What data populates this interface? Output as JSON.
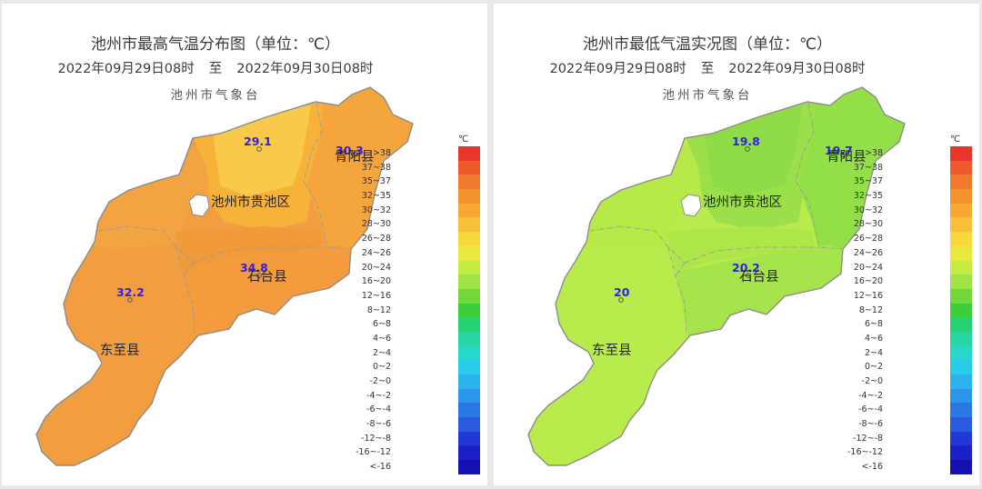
{
  "panels": [
    {
      "title": "池州市最高气温分布图（单位：℃）",
      "date_from": "2022年09月29日08时",
      "date_sep": "至",
      "date_to": "2022年09月30日08时",
      "source": "池州市气象台",
      "region_colors": {
        "north": "#f7b23a",
        "north_center": "#f9c94a",
        "northeast": "#f4a63c",
        "west": "#f4a343",
        "center": "#f19a3a",
        "southeast": "#f39b3d",
        "southwest": "#f29e40"
      },
      "stations": [
        {
          "value": "29.1"
        },
        {
          "value": "30.3"
        },
        {
          "value": "34.8"
        },
        {
          "value": "32.2"
        }
      ],
      "counties": {
        "guichi": "池州市贵池区",
        "qingyang": "青阳县",
        "shitai": "石台县",
        "dongzhi": "东至县"
      }
    },
    {
      "title": "池州市最低气温实况图（单位：℃）",
      "date_from": "2022年09月29日08时",
      "date_sep": "至",
      "date_to": "2022年09月30日08时",
      "source": "池州市气象台",
      "region_colors": {
        "north": "#9be04a",
        "north_center": "#8fdc48",
        "northeast": "#93df48",
        "west": "#b6ea49",
        "center": "#aee64a",
        "southeast": "#a5e44a",
        "southwest": "#b8ec4c"
      },
      "stations": [
        {
          "value": "19.8"
        },
        {
          "value": "19.7"
        },
        {
          "value": "20.2"
        },
        {
          "value": "20"
        }
      ],
      "counties": {
        "guichi": "池州市贵池区",
        "qingyang": "青阳县",
        "shitai": "石台县",
        "dongzhi": "东至县"
      }
    }
  ],
  "legend": {
    "unit": "℃",
    "items": [
      {
        "label": ">38",
        "color": "#e8372a"
      },
      {
        "label": "37~38",
        "color": "#ef5a2a"
      },
      {
        "label": "35~37",
        "color": "#f27a2c"
      },
      {
        "label": "32~35",
        "color": "#f5932e"
      },
      {
        "label": "30~32",
        "color": "#f6a832"
      },
      {
        "label": "28~30",
        "color": "#f7c038"
      },
      {
        "label": "26~28",
        "color": "#f5d83a"
      },
      {
        "label": "24~26",
        "color": "#e7ea3c"
      },
      {
        "label": "20~24",
        "color": "#c5ec42"
      },
      {
        "label": "16~20",
        "color": "#9fe346"
      },
      {
        "label": "12~16",
        "color": "#72d83c"
      },
      {
        "label": "8~12",
        "color": "#3ccf3a"
      },
      {
        "label": "6~8",
        "color": "#28d274"
      },
      {
        "label": "4~6",
        "color": "#27d6a4"
      },
      {
        "label": "2~4",
        "color": "#25d8cc"
      },
      {
        "label": "0~2",
        "color": "#27cbe8"
      },
      {
        "label": "-2~0",
        "color": "#2ab2ec"
      },
      {
        "label": "-4~-2",
        "color": "#2a95ea"
      },
      {
        "label": "-6~-4",
        "color": "#2a78e6"
      },
      {
        "label": "-8~-6",
        "color": "#2a5ae0"
      },
      {
        "label": "-12~-8",
        "color": "#2238d6"
      },
      {
        "label": "-16~-12",
        "color": "#1a1fc8"
      },
      {
        "label": "<-16",
        "color": "#1410b2"
      }
    ]
  }
}
